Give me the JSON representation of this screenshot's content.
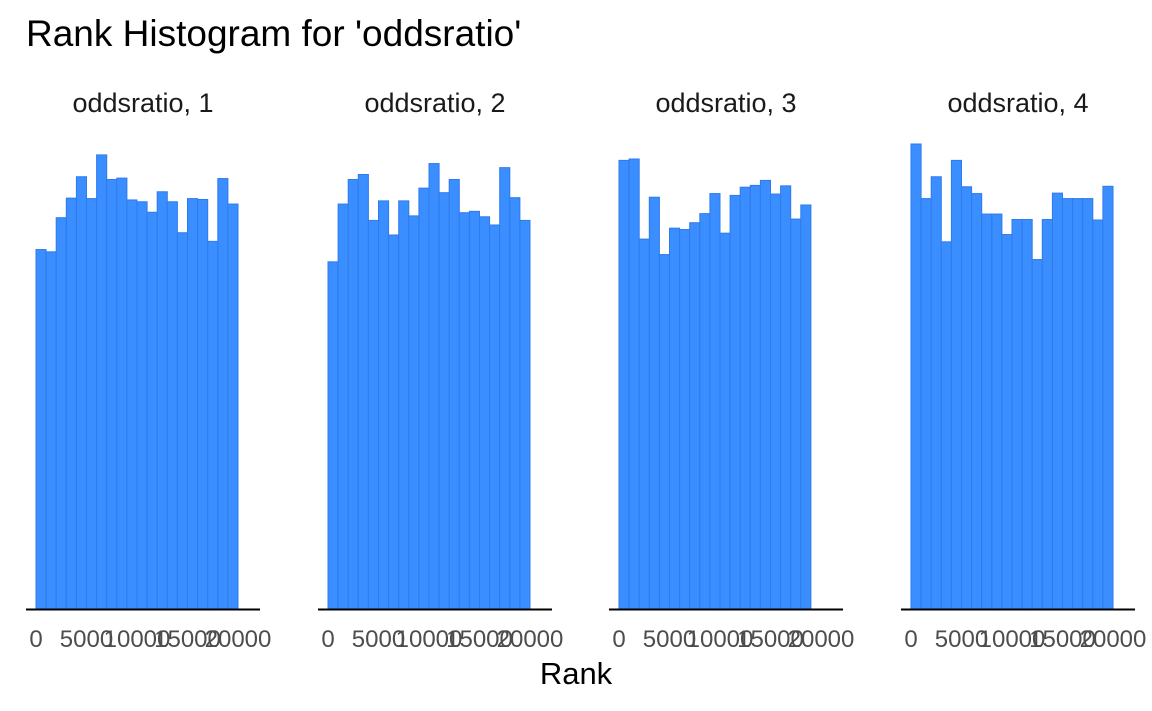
{
  "title": "Rank Histogram for 'oddsratio'",
  "chart_data": {
    "type": "bar",
    "subtype": "faceted-histogram",
    "title": "Rank Histogram for 'oddsratio'",
    "xlabel": "Rank",
    "ylabel": "",
    "xlim": [
      0,
      20000
    ],
    "ylim": [
      0,
      1.05
    ],
    "x_ticks": [
      0,
      5000,
      10000,
      15000,
      20000
    ],
    "x_tick_labels": [
      "0",
      "5000",
      "10000",
      "15000",
      "20000"
    ],
    "y_axis_shown": false,
    "grid": false,
    "bar_color": "#3a8eff",
    "bar_edge_color": "#2f7bec",
    "bins": 20,
    "bin_width": 1000,
    "facets": [
      {
        "label": "oddsratio, 1",
        "values": [
          0.79,
          0.785,
          0.86,
          0.903,
          0.95,
          0.902,
          0.998,
          0.944,
          0.947,
          0.899,
          0.895,
          0.872,
          0.917,
          0.895,
          0.827,
          0.902,
          0.9,
          0.808,
          0.946,
          0.89
        ]
      },
      {
        "label": "oddsratio, 2",
        "values": [
          0.763,
          0.89,
          0.944,
          0.955,
          0.854,
          0.897,
          0.822,
          0.897,
          0.864,
          0.925,
          0.979,
          0.915,
          0.944,
          0.871,
          0.874,
          0.862,
          0.844,
          0.97,
          0.904,
          0.854
        ]
      },
      {
        "label": "oddsratio, 3",
        "values": [
          0.986,
          0.989,
          0.813,
          0.905,
          0.779,
          0.837,
          0.834,
          0.849,
          0.869,
          0.913,
          0.826,
          0.909,
          0.927,
          0.931,
          0.942,
          0.912,
          0.93,
          0.857,
          0.888,
          0.0
        ]
      },
      {
        "label": "oddsratio, 4",
        "values": [
          1.022,
          0.902,
          0.95,
          0.807,
          0.986,
          0.928,
          0.913,
          0.868,
          0.868,
          0.823,
          0.856,
          0.856,
          0.768,
          0.856,
          0.914,
          0.902,
          0.902,
          0.902,
          0.855,
          0.929
        ]
      }
    ]
  }
}
